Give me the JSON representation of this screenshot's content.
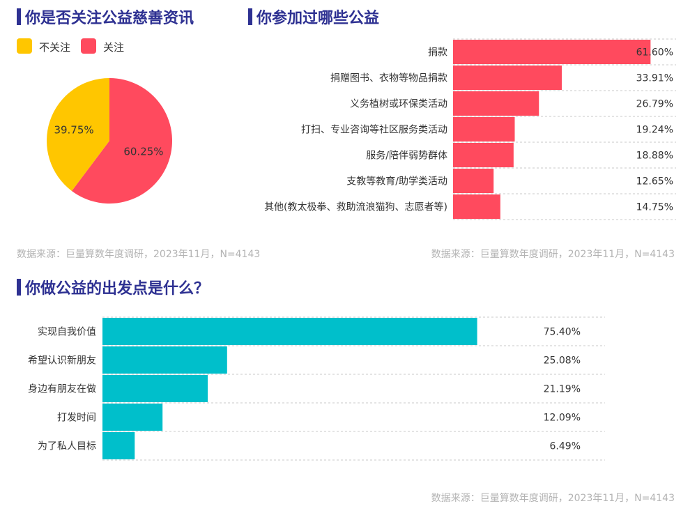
{
  "sections": {
    "follow": {
      "title": "你是否关注公益慈善资讯",
      "source": "数据来源：巨量算数年度调研，2023年11月，N=4143"
    },
    "activities": {
      "title": "你参加过哪些公益",
      "source": "数据来源：巨量算数年度调研，2023年11月，N=4143"
    },
    "motivation": {
      "title": "你做公益的出发点是什么？",
      "source": "数据来源：巨量算数年度调研，2023年11月，N=4143"
    }
  },
  "colors": {
    "accent": "#2e3192",
    "yellow": "#ffc600",
    "red": "#ff4a5e",
    "teal": "#00bfcb"
  },
  "chart_data": [
    {
      "type": "pie",
      "title": "你是否关注公益慈善资讯",
      "legend": "top-left",
      "labels": [
        "不关注",
        "关注"
      ],
      "values": [
        39.75,
        60.25
      ],
      "value_labels": [
        "39.75%",
        "60.25%"
      ],
      "colors": [
        "#ffc600",
        "#ff4a5e"
      ]
    },
    {
      "type": "bar",
      "orientation": "horizontal",
      "title": "你参加过哪些公益",
      "categories": [
        "捐款",
        "捐赠图书、衣物等物品捐款",
        "义务植树或环保类活动",
        "打扫、专业咨询等社区服务类活动",
        "服务/陪伴弱势群体",
        "支教等教育/助学类活动",
        "其他(教太极拳、救助流浪猫狗、志愿者等)"
      ],
      "values": [
        61.6,
        33.91,
        26.79,
        19.24,
        18.88,
        12.65,
        14.75
      ],
      "value_labels": [
        "61.60%",
        "33.91%",
        "26.79%",
        "19.24%",
        "18.88%",
        "12.65%",
        "14.75%"
      ],
      "color": "#ff4a5e",
      "xlim": [
        0,
        100
      ]
    },
    {
      "type": "bar",
      "orientation": "horizontal",
      "title": "你做公益的出发点是什么？",
      "categories": [
        "实现自我价值",
        "希望认识新朋友",
        "身边有朋友在做",
        "打发时间",
        "为了私人目标"
      ],
      "values": [
        75.4,
        25.08,
        21.19,
        12.09,
        6.49
      ],
      "value_labels": [
        "75.40%",
        "25.08%",
        "21.19%",
        "12.09%",
        "6.49%"
      ],
      "color": "#00bfcb",
      "xlim": [
        0,
        100
      ]
    }
  ]
}
